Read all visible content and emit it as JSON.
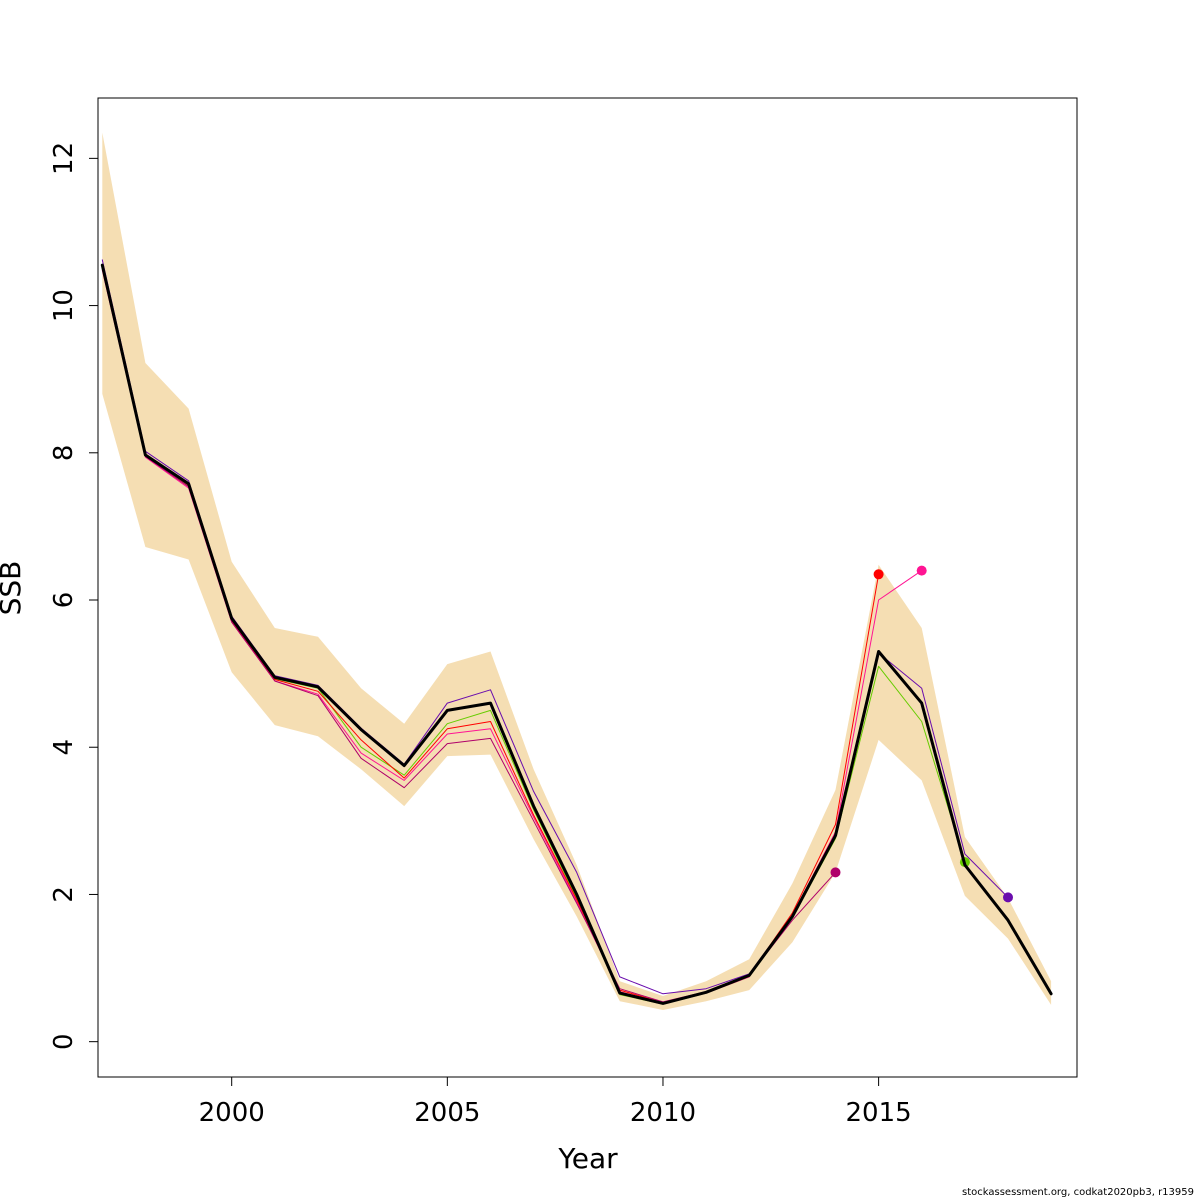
{
  "chart_data": {
    "type": "line",
    "title": "",
    "xlabel": "Year",
    "ylabel": "SSB",
    "xlim": [
      1996.9,
      2019.6
    ],
    "ylim": [
      -0.48,
      12.82
    ],
    "x_ticks": [
      2000,
      2005,
      2010,
      2015
    ],
    "x_tick_labels": [
      "2000",
      "2005",
      "2010",
      "2015"
    ],
    "y_ticks": [
      0,
      2,
      4,
      6,
      8,
      10,
      12
    ],
    "y_tick_labels": [
      "0",
      "2",
      "4",
      "6",
      "8",
      "10",
      "12"
    ],
    "grid": false,
    "legend": "none",
    "confidence_band": {
      "color": "#f5deb3",
      "x": [
        1997,
        1998,
        1999,
        2000,
        2001,
        2002,
        2003,
        2004,
        2005,
        2006,
        2007,
        2008,
        2009,
        2010,
        2011,
        2012,
        2013,
        2014,
        2015,
        2016,
        2017,
        2018,
        2019
      ],
      "lower": [
        8.8,
        6.72,
        6.55,
        5.02,
        4.3,
        4.15,
        3.7,
        3.2,
        3.88,
        3.9,
        2.75,
        1.7,
        0.55,
        0.43,
        0.55,
        0.7,
        1.35,
        2.3,
        4.1,
        3.55,
        1.98,
        1.4,
        0.5
      ],
      "upper": [
        12.35,
        9.22,
        8.6,
        6.52,
        5.62,
        5.5,
        4.8,
        4.32,
        5.13,
        5.3,
        3.7,
        2.4,
        0.82,
        0.62,
        0.82,
        1.12,
        2.15,
        3.42,
        6.48,
        5.62,
        2.78,
        1.95,
        0.82
      ]
    },
    "series": [
      {
        "color": "#000000",
        "width": 3,
        "x": [
          1997,
          1998,
          1999,
          2000,
          2001,
          2002,
          2003,
          2004,
          2005,
          2006,
          2007,
          2008,
          2009,
          2010,
          2011,
          2012,
          2013,
          2014,
          2015,
          2016,
          2017,
          2018,
          2019
        ],
        "values": [
          10.55,
          7.97,
          7.58,
          5.75,
          4.95,
          4.82,
          4.24,
          3.75,
          4.5,
          4.6,
          3.2,
          2.0,
          0.66,
          0.52,
          0.67,
          0.9,
          1.7,
          2.8,
          5.3,
          4.6,
          2.4,
          1.65,
          0.65
        ],
        "end_point": false
      },
      {
        "color": "#6a0dad",
        "width": 1,
        "x": [
          1997,
          1998,
          1999,
          2000,
          2001,
          2002,
          2003,
          2004,
          2005,
          2006,
          2007,
          2008,
          2009,
          2010,
          2011,
          2012,
          2013,
          2014,
          2015,
          2016,
          2017,
          2018
        ],
        "values": [
          10.62,
          8.02,
          7.62,
          5.78,
          4.97,
          4.84,
          4.26,
          3.77,
          4.6,
          4.78,
          3.4,
          2.3,
          0.88,
          0.65,
          0.72,
          0.92,
          1.72,
          2.82,
          5.28,
          4.8,
          2.55,
          1.96
        ],
        "end_point": true
      },
      {
        "color": "#66cc00",
        "width": 1,
        "x": [
          1997,
          1998,
          1999,
          2000,
          2001,
          2002,
          2003,
          2004,
          2005,
          2006,
          2007,
          2008,
          2009,
          2010,
          2011,
          2012,
          2013,
          2014,
          2015,
          2016,
          2017
        ],
        "values": [
          10.5,
          7.95,
          7.55,
          5.73,
          4.93,
          4.8,
          4.0,
          3.62,
          4.32,
          4.5,
          3.15,
          1.95,
          0.64,
          0.51,
          0.66,
          0.88,
          1.68,
          2.76,
          5.1,
          4.35,
          2.44
        ],
        "end_point": true
      },
      {
        "color": "#ff1493",
        "width": 1,
        "x": [
          1997,
          1998,
          1999,
          2000,
          2001,
          2002,
          2003,
          2004,
          2005,
          2006,
          2007,
          2008,
          2009,
          2010,
          2011,
          2012,
          2013,
          2014,
          2015,
          2016
        ],
        "values": [
          10.48,
          7.94,
          7.52,
          5.7,
          4.9,
          4.72,
          3.92,
          3.55,
          4.18,
          4.25,
          3.05,
          1.9,
          0.68,
          0.52,
          0.66,
          0.88,
          1.72,
          2.85,
          6.0,
          6.4
        ],
        "end_point": true
      },
      {
        "color": "#ff0000",
        "width": 1,
        "x": [
          1997,
          1998,
          1999,
          2000,
          2001,
          2002,
          2003,
          2004,
          2005,
          2006,
          2007,
          2008,
          2009,
          2010,
          2011,
          2012,
          2013,
          2014,
          2015
        ],
        "values": [
          10.52,
          7.96,
          7.56,
          5.72,
          4.92,
          4.76,
          4.1,
          3.58,
          4.25,
          4.35,
          3.08,
          1.93,
          0.7,
          0.53,
          0.67,
          0.9,
          1.75,
          2.95,
          6.35
        ],
        "end_point": true
      },
      {
        "color": "#b0006a",
        "width": 1,
        "x": [
          1997,
          1998,
          1999,
          2000,
          2001,
          2002,
          2003,
          2004,
          2005,
          2006,
          2007,
          2008,
          2009,
          2010,
          2011,
          2012,
          2013,
          2014
        ],
        "values": [
          10.5,
          7.95,
          7.54,
          5.7,
          4.9,
          4.7,
          3.85,
          3.45,
          4.05,
          4.12,
          3.0,
          1.88,
          0.72,
          0.54,
          0.68,
          0.9,
          1.65,
          2.3
        ],
        "end_point": true
      }
    ]
  },
  "footer": {
    "text": "stockassessment.org, codkat2020pb3, r13959"
  }
}
